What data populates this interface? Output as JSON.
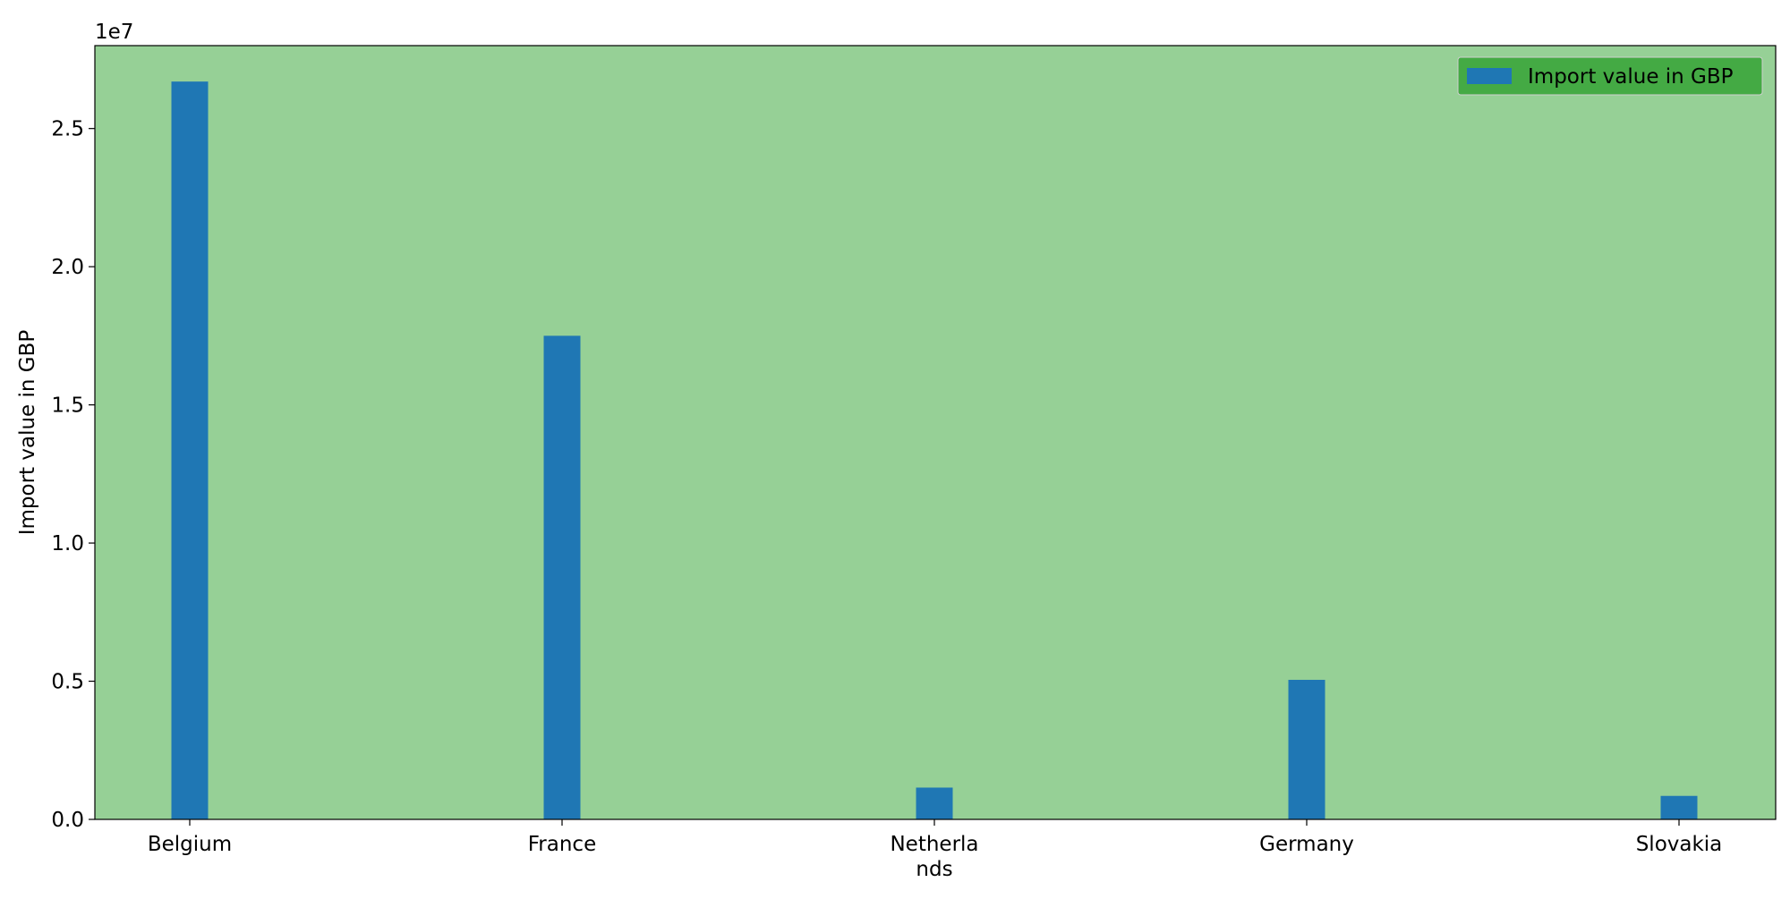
{
  "chart_data": {
    "type": "bar",
    "categories": [
      "Belgium",
      "France",
      "Netherlands",
      "Germany",
      "Slovakia"
    ],
    "category_labels": [
      [
        "Belgium"
      ],
      [
        "France"
      ],
      [
        "Netherla",
        "nds"
      ],
      [
        "Germany"
      ],
      [
        "Slovakia"
      ]
    ],
    "series": [
      {
        "name": "Import value in GBP",
        "values": [
          26700000,
          17500000,
          1150000,
          5050000,
          850000
        ]
      }
    ],
    "xlabel": "",
    "ylabel": "Import value in GBP",
    "ylim": [
      0,
      28000000
    ],
    "yticks": [
      0,
      5000000,
      10000000,
      15000000,
      20000000,
      25000000
    ],
    "ytick_labels": [
      "0.0",
      "0.5",
      "1.0",
      "1.5",
      "2.0",
      "2.5"
    ],
    "y_offset_label": "1e7",
    "legend": {
      "position": "top-right",
      "entries": [
        "Import value in GBP"
      ]
    },
    "grid": false,
    "colors": {
      "bar": "#1f77b4",
      "plot_background": "#96d096",
      "legend_background": "#44aa44"
    }
  }
}
